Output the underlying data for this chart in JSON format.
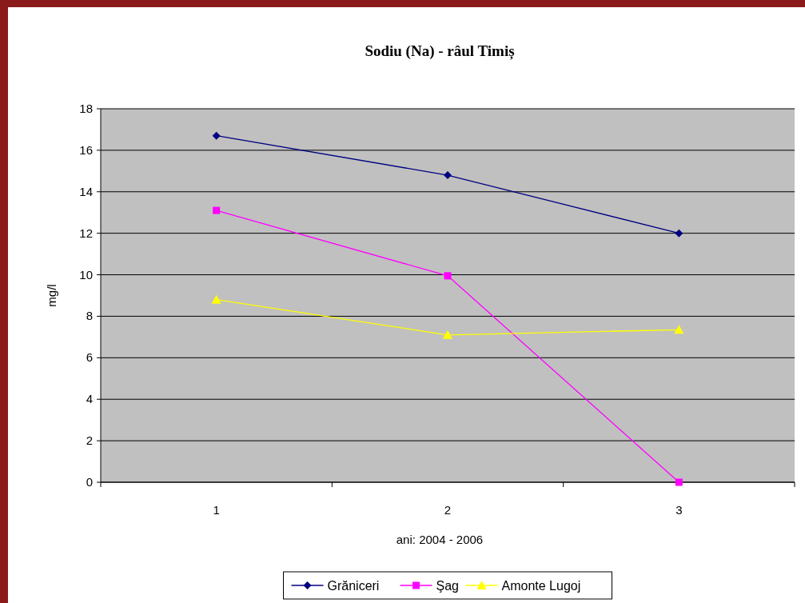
{
  "chart_data": {
    "type": "line",
    "title": "Sodiu (Na) - râul Timiș",
    "xlabel": "ani: 2004 - 2006",
    "ylabel": "mg/l",
    "categories": [
      "1",
      "2",
      "3"
    ],
    "series": [
      {
        "name": "Grăniceri",
        "color": "#000080",
        "values": [
          16.7,
          14.8,
          12.0
        ],
        "marker": "diamond"
      },
      {
        "name": "Şag",
        "color": "#ff00ff",
        "values": [
          13.1,
          9.95,
          0
        ],
        "marker": "square"
      },
      {
        "name": "Amonte Lugoj",
        "color": "#ffff00",
        "values": [
          8.8,
          7.1,
          7.35
        ],
        "marker": "triangle"
      }
    ],
    "ylim": [
      0,
      18
    ],
    "yticks": [
      0,
      2,
      4,
      6,
      8,
      10,
      12,
      14,
      16,
      18
    ],
    "grid": "y",
    "legend": "bottom"
  }
}
